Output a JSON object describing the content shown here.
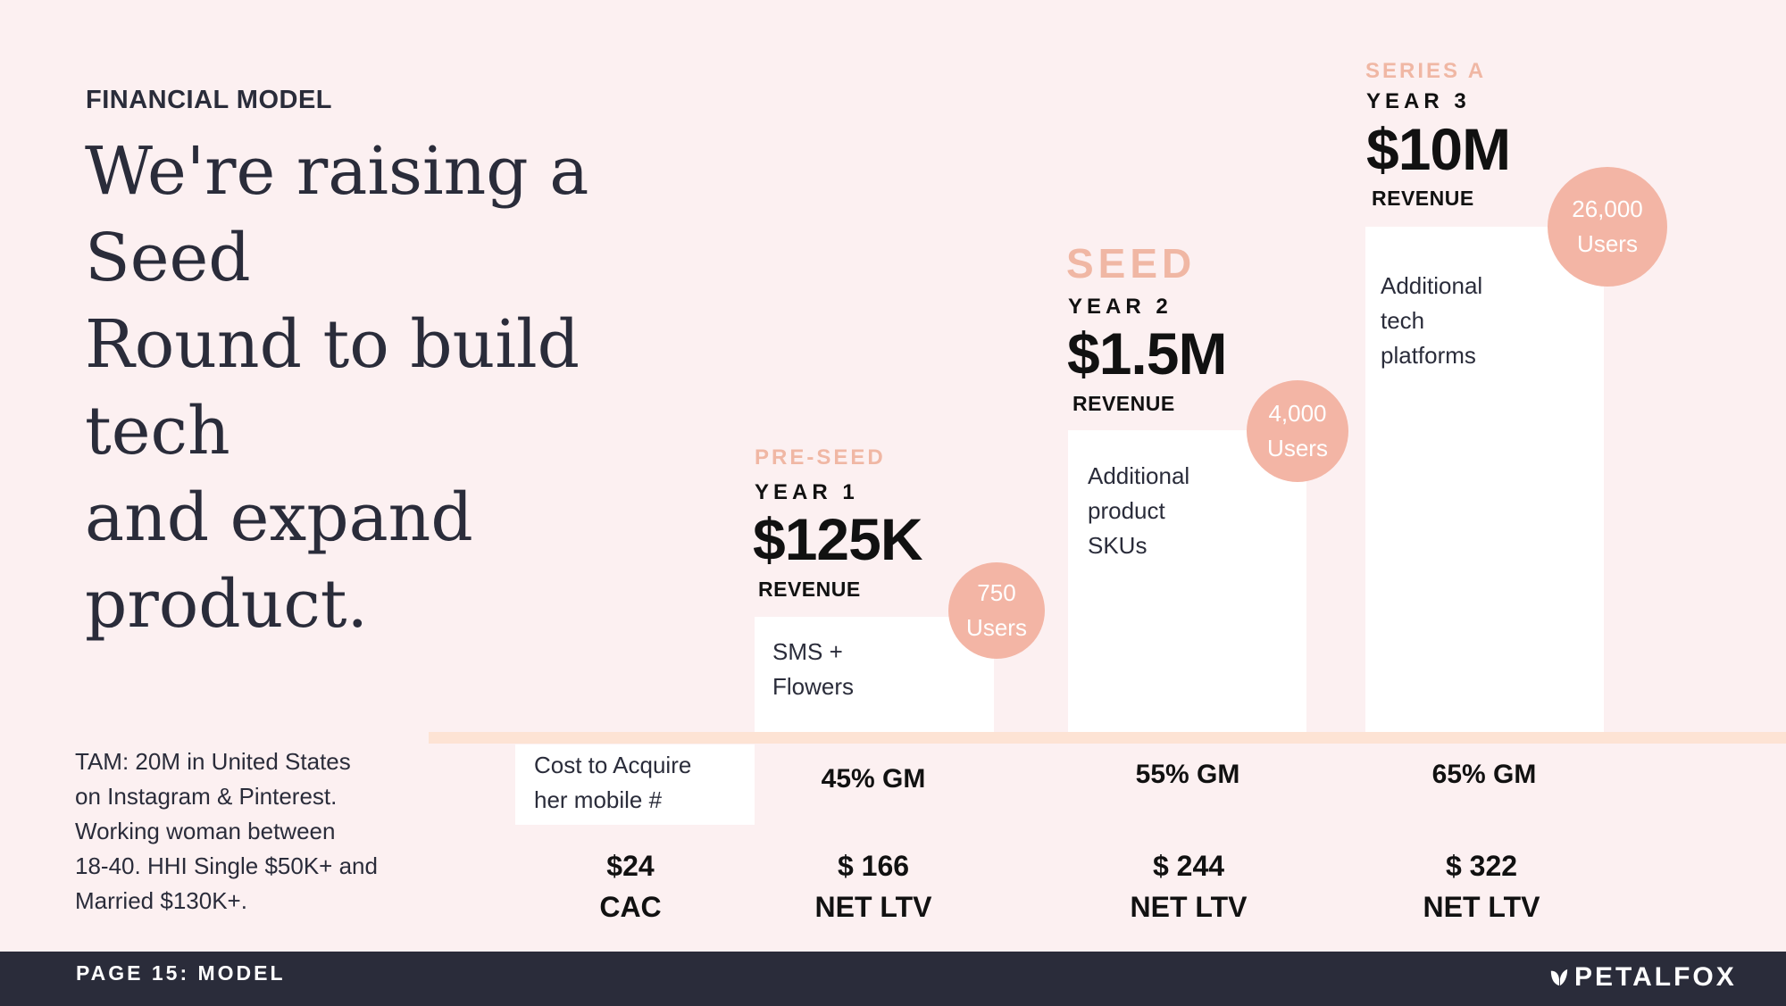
{
  "header": {
    "section_label": "FINANCIAL MODEL",
    "headline_lines": [
      "We're raising a Seed",
      "Round to build tech",
      "and expand product."
    ]
  },
  "stages": [
    {
      "stage": "PRE-SEED",
      "year": "YEAR 1",
      "amount": "$125K",
      "revenue_label": "REVENUE",
      "bar_lines": [
        "SMS +",
        "Flowers"
      ],
      "users_count": "750",
      "users_label": "Users",
      "gm": "45% GM",
      "ltv_value": "$ 166",
      "ltv_label": "NET LTV"
    },
    {
      "stage": "SEED",
      "year": "YEAR 2",
      "amount": "$1.5M",
      "revenue_label": "REVENUE",
      "bar_lines": [
        "Additional",
        "product",
        "SKUs"
      ],
      "users_count": "4,000",
      "users_label": "Users",
      "gm": "55% GM",
      "ltv_value": "$ 244",
      "ltv_label": "NET LTV"
    },
    {
      "stage": "SERIES A",
      "year": "YEAR 3",
      "amount": "$10M",
      "revenue_label": "REVENUE",
      "bar_lines": [
        "Additional",
        "tech",
        "platforms"
      ],
      "users_count": "26,000",
      "users_label": "Users",
      "gm": "65% GM",
      "ltv_value": "$ 322",
      "ltv_label": "NET LTV"
    }
  ],
  "cac": {
    "box_lines": [
      "Cost to Acquire",
      "her mobile #"
    ],
    "value": "$24",
    "label": "CAC"
  },
  "tam": {
    "lines": [
      "TAM: 20M in United States",
      "on Instagram & Pinterest.",
      "Working woman between",
      "18-40. HHI Single $50K+ and",
      "Married $130K+."
    ]
  },
  "footer": {
    "page_label": "PAGE 15: MODEL",
    "brand": "PETALFOX",
    "brand_icon": "leaf-icon"
  },
  "colors": {
    "background": "#fcf0f1",
    "accent_peach": "#f3b5a5",
    "baseline": "#fde3d4",
    "footer": "#2a2c3a"
  }
}
